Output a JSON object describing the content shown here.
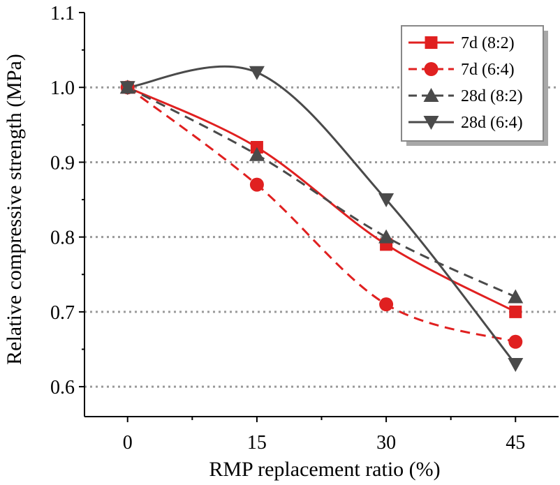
{
  "chart_data": {
    "type": "line",
    "title": "",
    "xlabel": "RMP replacement ratio (%)",
    "ylabel": "Relative compressive strength (MPa)",
    "x": [
      0,
      15,
      30,
      45
    ],
    "x_ticks": [
      "0",
      "15",
      "30",
      "45"
    ],
    "y_ticks": [
      "0.6",
      "0.7",
      "0.8",
      "0.9",
      "1.0",
      "1.1"
    ],
    "xlim": [
      -5,
      50
    ],
    "ylim": [
      0.56,
      1.1
    ],
    "grid": "horizontal dotted",
    "legend_position": "top-right",
    "series": [
      {
        "name": "7d (8:2)",
        "values": [
          1.0,
          0.92,
          0.79,
          0.7
        ],
        "color": "#e02020",
        "dash": "solid",
        "marker": "square"
      },
      {
        "name": "7d (6:4)",
        "values": [
          1.0,
          0.87,
          0.71,
          0.66
        ],
        "color": "#e02020",
        "dash": "dashed",
        "marker": "circle"
      },
      {
        "name": "28d (8:2)",
        "values": [
          1.0,
          0.91,
          0.8,
          0.72
        ],
        "color": "#4a4a4a",
        "dash": "dashed",
        "marker": "triangle-up"
      },
      {
        "name": "28d (6:4)",
        "values": [
          1.0,
          1.02,
          0.85,
          0.63
        ],
        "color": "#4a4a4a",
        "dash": "solid",
        "marker": "triangle-down"
      }
    ]
  }
}
